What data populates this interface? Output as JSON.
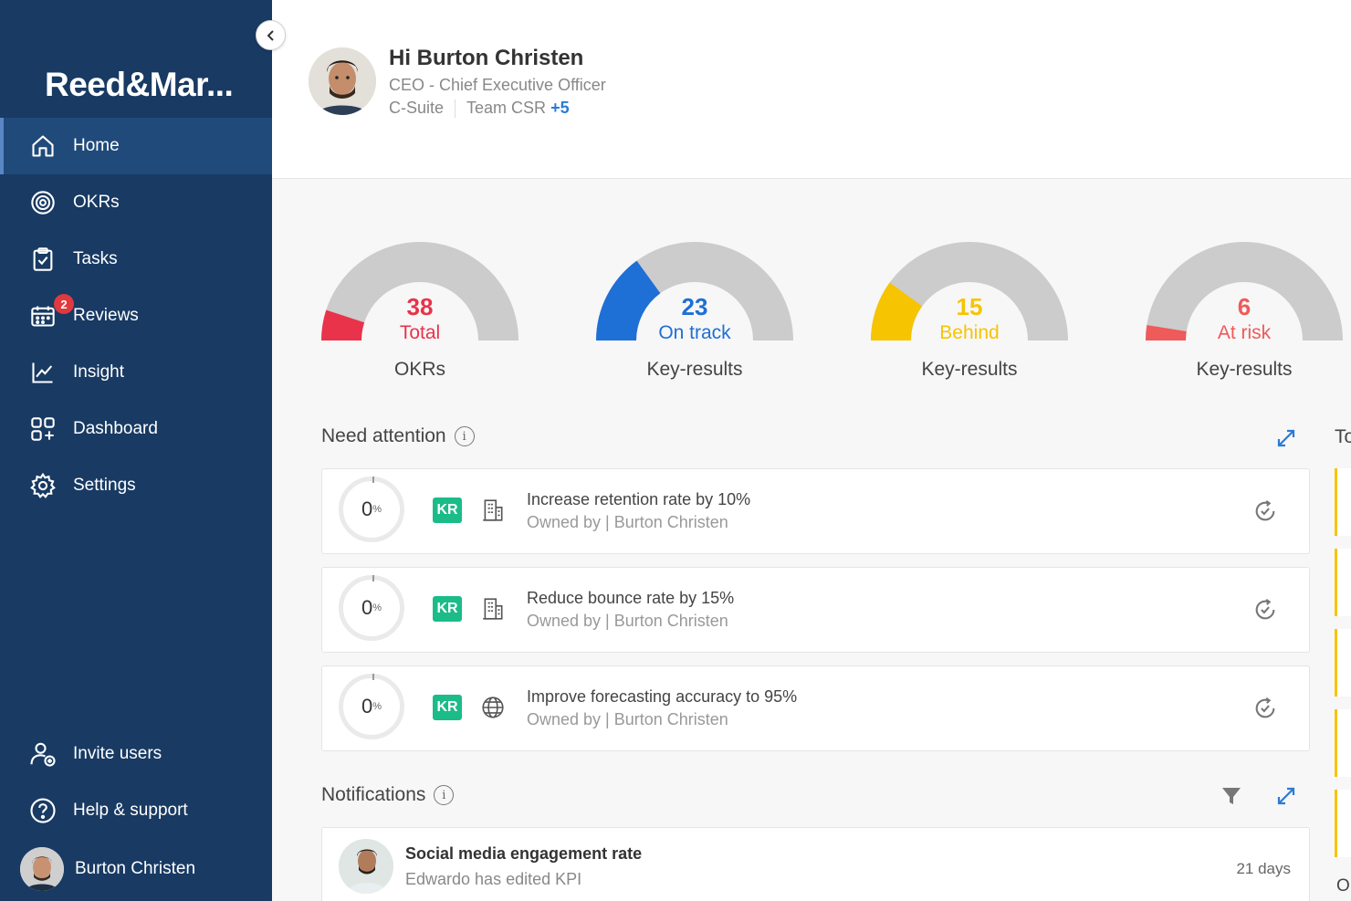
{
  "sidebar": {
    "brand": "Reed&Mar...",
    "items": [
      {
        "label": "Home",
        "icon": "home-icon"
      },
      {
        "label": "OKRs",
        "icon": "target-icon"
      },
      {
        "label": "Tasks",
        "icon": "clipboard-check-icon"
      },
      {
        "label": "Reviews",
        "icon": "calendar-icon",
        "badge": "2"
      },
      {
        "label": "Insight",
        "icon": "chart-line-icon"
      },
      {
        "label": "Dashboard",
        "icon": "grid-plus-icon"
      },
      {
        "label": "Settings",
        "icon": "gear-icon"
      }
    ],
    "bottom": [
      {
        "label": "Invite users",
        "icon": "user-plus-icon"
      },
      {
        "label": "Help & support",
        "icon": "question-circle-icon"
      }
    ],
    "user": "Burton Christen"
  },
  "header": {
    "greeting": "Hi Burton Christen",
    "role": "CEO - Chief Executive Officer",
    "team1": "C-Suite",
    "team2": "Team CSR",
    "more": "+5"
  },
  "gauges": [
    {
      "value": "38",
      "label": "Total",
      "caption": "OKRs",
      "color": "#e8334a",
      "fraction": 0.1
    },
    {
      "value": "23",
      "label": "On track",
      "caption": "Key-results",
      "color": "#1e6fd6",
      "fraction": 0.3
    },
    {
      "value": "15",
      "label": "Behind",
      "caption": "Key-results",
      "color": "#f6c400",
      "fraction": 0.2
    },
    {
      "value": "6",
      "label": "At risk",
      "caption": "Key-results",
      "color": "#ef5a5a",
      "fraction": 0.05
    }
  ],
  "gauge_colors": {
    "track": "#cccccc",
    "total": "#e8334a",
    "ontrack": "#1e6fd6",
    "behind": "#f6c400",
    "atrisk": "#ef5a5a"
  },
  "attention": {
    "title": "Need attention",
    "items": [
      {
        "progress": "0",
        "unit": "%",
        "badge": "KR",
        "title": "Increase retention rate by 10%",
        "owner": "Owned by | Burton Christen",
        "type_icon": "building-icon"
      },
      {
        "progress": "0",
        "unit": "%",
        "badge": "KR",
        "title": "Reduce bounce rate by 15%",
        "owner": "Owned by | Burton Christen",
        "type_icon": "building-icon"
      },
      {
        "progress": "0",
        "unit": "%",
        "badge": "KR",
        "title": "Improve forecasting accuracy to 95%",
        "owner": "Owned by | Burton Christen",
        "type_icon": "globe-icon"
      }
    ]
  },
  "notifications": {
    "title": "Notifications",
    "items": [
      {
        "title": "Social media engagement rate",
        "sub": "Edwardo has edited KPI",
        "time": "21 days"
      }
    ]
  },
  "right_panel": {
    "title_cut": "To",
    "bottom_cut": "O"
  }
}
